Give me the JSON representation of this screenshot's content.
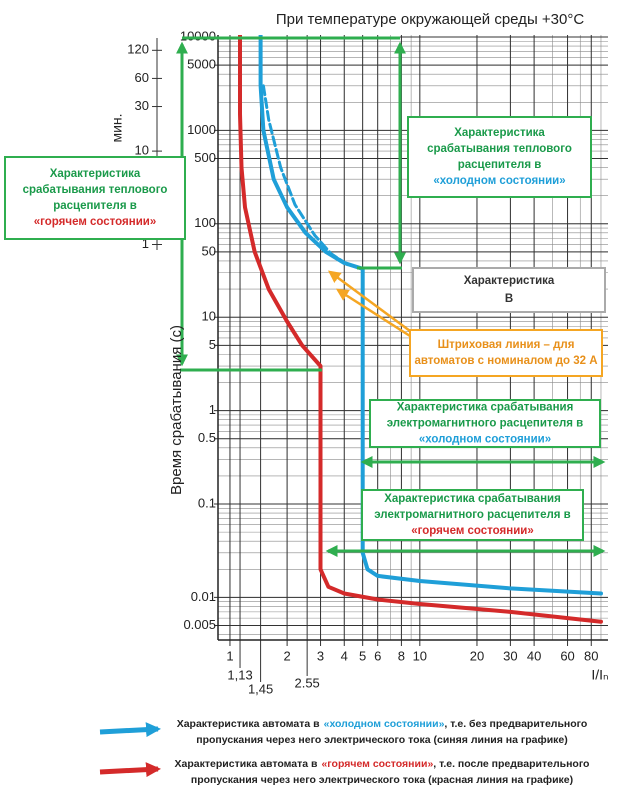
{
  "chart_data": {
    "type": "line",
    "title": "При температуре окружающей среды +30°С",
    "x_label": "I/Iₙ",
    "y_label": "Время срабатывания (с)",
    "y2_label": "мин.",
    "log_x": true,
    "log_y": true,
    "grid": true,
    "xlim": [
      0.865,
      98
    ],
    "ylim": [
      0.0035,
      10500
    ],
    "y2lim": [
      5.83e-05,
      175
    ],
    "xticks": [
      1,
      2,
      3,
      4,
      5,
      6,
      8,
      10,
      20,
      30,
      40,
      60,
      80
    ],
    "xticks_extra": [
      {
        "value": 1.13,
        "label": "1,13"
      },
      {
        "value": 1.45,
        "label": "1,45"
      },
      {
        "value": 2.55,
        "label": "2.55"
      }
    ],
    "yticks": [
      0.005,
      0.01,
      0.1,
      0.5,
      1,
      5,
      10,
      50,
      100,
      500,
      1000,
      5000,
      10000
    ],
    "y2ticks": [
      1,
      5,
      10,
      30,
      60,
      120
    ],
    "xgrid": [
      1,
      2,
      3,
      4,
      5,
      6,
      7,
      8,
      9,
      10,
      20,
      30,
      40,
      50,
      60,
      70,
      80,
      90
    ],
    "ygrid": [
      0.004,
      0.005,
      0.006,
      0.007,
      0.008,
      0.009,
      0.01,
      0.02,
      0.03,
      0.04,
      0.05,
      0.06,
      0.07,
      0.08,
      0.09,
      0.1,
      0.2,
      0.3,
      0.4,
      0.5,
      0.6,
      0.7,
      0.8,
      0.9,
      1,
      2,
      3,
      4,
      5,
      6,
      7,
      8,
      9,
      10,
      20,
      30,
      40,
      50,
      60,
      70,
      80,
      90,
      100,
      200,
      300,
      400,
      500,
      600,
      700,
      800,
      900,
      1000,
      2000,
      3000,
      4000,
      5000,
      6000,
      7000,
      8000,
      9000,
      10000
    ],
    "series": [
      {
        "color": "#1f9fd8",
        "dashed": false,
        "x": [
          1.45,
          1.45,
          1.5,
          1.7,
          2,
          2.5,
          3.2,
          4,
          5,
          5,
          5.3,
          6,
          10,
          30,
          90
        ],
        "values": [
          10500,
          3000,
          1000,
          300,
          150,
          80,
          50,
          38,
          33,
          0.03,
          0.02,
          0.017,
          0.015,
          0.0125,
          0.011
        ]
      },
      {
        "color": "#d42a2a",
        "dashed": false,
        "x": [
          1.13,
          1.13,
          1.15,
          1.2,
          1.35,
          1.6,
          2,
          2.4,
          3,
          3,
          3.3,
          4,
          6,
          10,
          30,
          90
        ],
        "values": [
          10500,
          1500,
          400,
          150,
          50,
          20,
          9,
          5,
          3,
          0.02,
          0.013,
          0.011,
          0.0095,
          0.0085,
          0.007,
          0.0055
        ]
      },
      {
        "color": "#1f9fd8",
        "dashed": true,
        "x": [
          1.5,
          1.6,
          1.85,
          2.2,
          2.8,
          3.4,
          4.2
        ],
        "values": [
          3000,
          1300,
          400,
          160,
          75,
          48,
          36
        ]
      }
    ],
    "annotations": [
      {
        "lines": [
          "Характеристика",
          "срабатывания теплового",
          "расцепителя в"
        ],
        "color": "#1a9a4a",
        "highlight": "«горячем состоянии»",
        "highlight_color": "#d42a2a"
      },
      {
        "lines": [
          "Характеристика",
          "срабатывания теплового",
          "расцепителя в"
        ],
        "color": "#1a9a4a",
        "highlight": "«холодном состоянии»",
        "highlight_color": "#1f9fd8"
      },
      {
        "lines": [
          "Характеристика",
          "B"
        ],
        "color": "#333333"
      },
      {
        "lines": [
          "Штриховая линия – для",
          "автоматов с номиналом до 32 А"
        ],
        "color": "#e8901a"
      },
      {
        "lines": [
          "Характеристика срабатывания",
          "электромагнитного расцепителя в"
        ],
        "color": "#1a9a4a",
        "highlight": "«холодном состоянии»",
        "highlight_color": "#1f9fd8"
      },
      {
        "lines": [
          "Характеристика срабатывания",
          "электромагнитного расцепителя в"
        ],
        "color": "#1a9a4a",
        "highlight": "«горячем состоянии»",
        "highlight_color": "#d42a2a"
      }
    ],
    "legend": [
      {
        "color": "#1f9fd8",
        "prefix": "Характеристика автомата в",
        "highlight": "«холодном состоянии»",
        "rest": ", т.е. без предварительного",
        "line2": "пропускания через него электрического тока (синяя линия на графике)"
      },
      {
        "color": "#d42a2a",
        "prefix": "Характеристика автомата в",
        "highlight": "«горячем состоянии»",
        "rest": ", т.е. после предварительного",
        "line2": "пропускания через него электрического тока (красная линия на графике)"
      }
    ]
  }
}
